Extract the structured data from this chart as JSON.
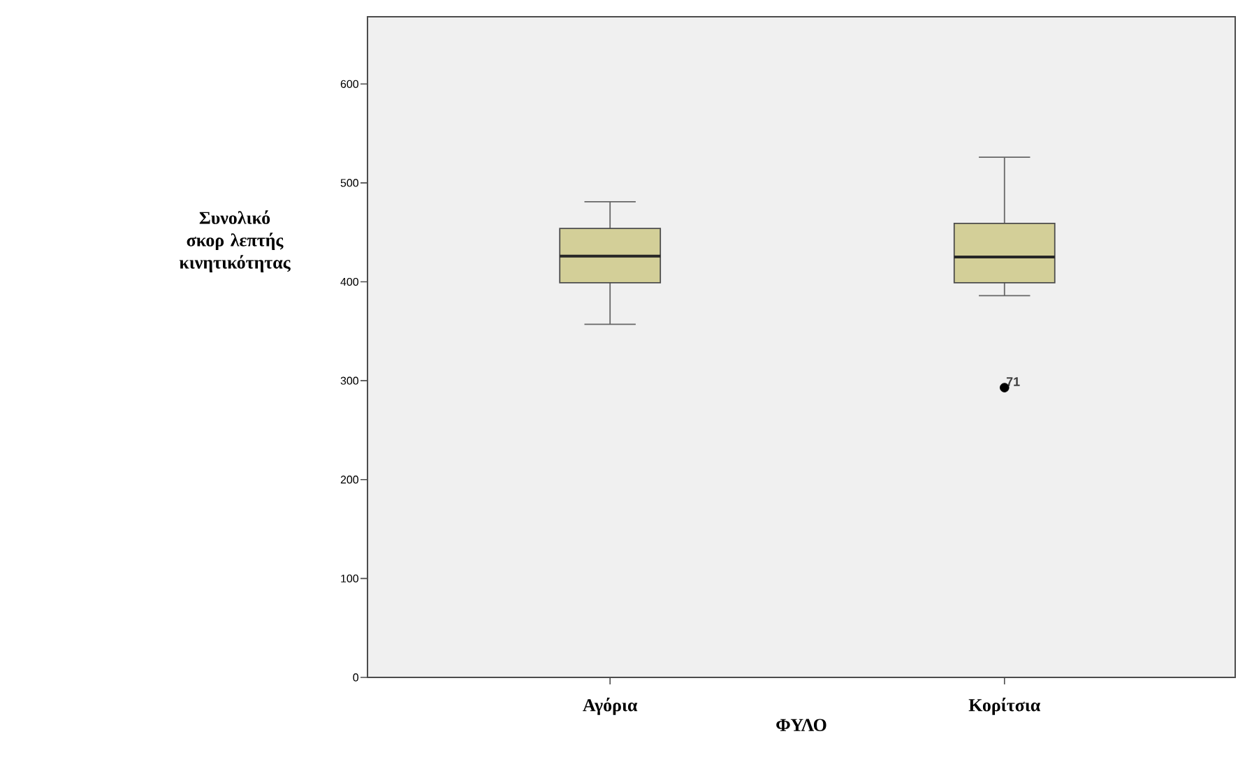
{
  "chart_data": {
    "type": "box",
    "xlabel": "ΦΥΛΟ",
    "ylabel": "Συνολικό σκορ λεπτής κινητικότητας",
    "categories": [
      "Αγόρια",
      "Κορίτσια"
    ],
    "color": "#d3cf98",
    "boxes": [
      {
        "low": 357,
        "q1": 399,
        "median": 426,
        "q3": 454,
        "high": 481
      },
      {
        "low": 386,
        "q1": 399,
        "median": 425,
        "q3": 459,
        "high": 526,
        "outliers": [
          293
        ]
      }
    ],
    "ylim": [
      0,
      668
    ],
    "yticks": [
      0,
      100,
      200,
      300,
      400,
      500,
      600
    ],
    "annotations": [
      "71"
    ]
  }
}
